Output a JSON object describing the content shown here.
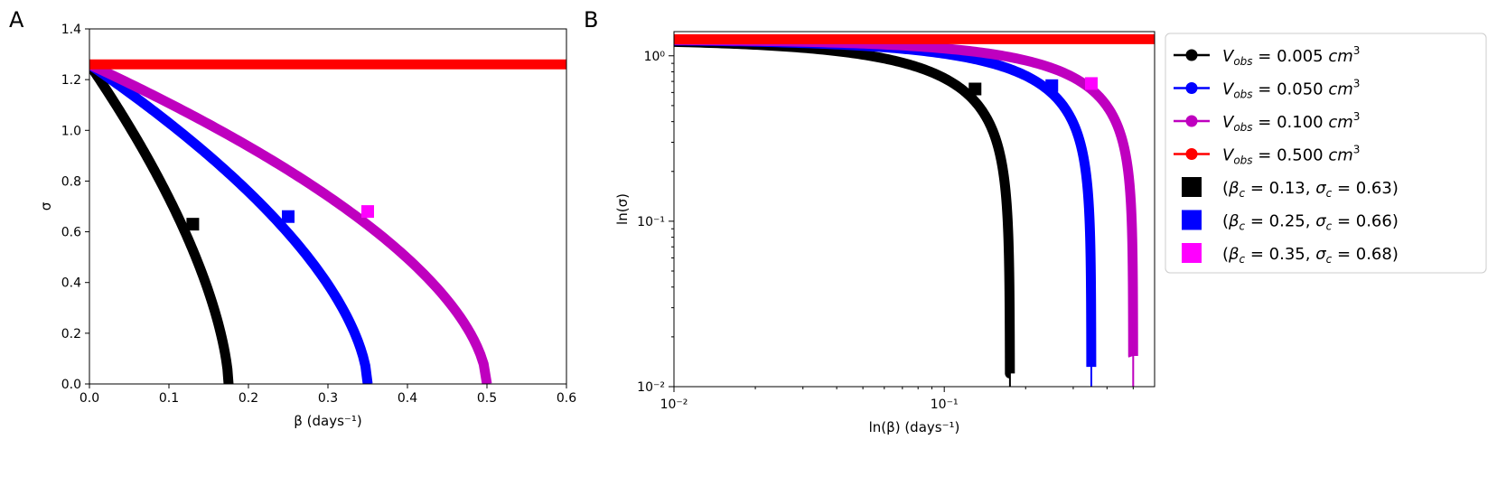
{
  "panels": [
    {
      "label": "A"
    },
    {
      "label": "B"
    }
  ],
  "chart_data": [
    {
      "type": "line",
      "panel": "A",
      "xlabel": "β (days⁻¹)",
      "ylabel": "σ",
      "xlim": [
        0,
        0.6
      ],
      "ylim": [
        0,
        1.4
      ],
      "xticks": [
        "0.0",
        "0.1",
        "0.2",
        "0.3",
        "0.4",
        "0.5",
        "0.6"
      ],
      "yticks": [
        "0.0",
        "0.2",
        "0.4",
        "0.6",
        "0.8",
        "1.0",
        "1.2",
        "1.4"
      ],
      "grid": false,
      "series": [
        {
          "name": "V_obs = 0.005 cm³",
          "color": "#000000",
          "beta_max": 0.175,
          "sigma0": 1.26,
          "exponent": 0.64
        },
        {
          "name": "V_obs = 0.050 cm³",
          "color": "#0000ff",
          "beta_max": 0.35,
          "sigma0": 1.26,
          "exponent": 0.6
        },
        {
          "name": "V_obs = 0.100 cm³",
          "color": "#bf00bf",
          "beta_max": 0.5,
          "sigma0": 1.26,
          "exponent": 0.58
        },
        {
          "name": "V_obs = 0.500 cm³",
          "color": "#ff0000",
          "constant": 1.26
        }
      ],
      "critical_points": [
        {
          "beta": 0.13,
          "sigma": 0.63,
          "color": "#000000"
        },
        {
          "beta": 0.25,
          "sigma": 0.66,
          "color": "#0000ff"
        },
        {
          "beta": 0.35,
          "sigma": 0.68,
          "color": "#ff00ff"
        }
      ]
    },
    {
      "type": "line",
      "panel": "B",
      "scale": "log-log",
      "xlabel": "ln(β) (days⁻¹)",
      "ylabel": "ln(σ)",
      "xlim": [
        0.01,
        0.6
      ],
      "ylim": [
        0.01,
        1.4
      ],
      "xticks": [
        "10⁻²",
        "10⁻¹"
      ],
      "yticks": [
        "10⁻²",
        "10⁻¹",
        "10⁰"
      ],
      "grid": false,
      "legend_position": "outside-right",
      "legend": [
        {
          "prefix": "V",
          "sub": "obs",
          "text": " = 0.005 ",
          "unit": "cm",
          "sup": "3",
          "color": "#000000",
          "marker": "circle"
        },
        {
          "prefix": "V",
          "sub": "obs",
          "text": " = 0.050 ",
          "unit": "cm",
          "sup": "3",
          "color": "#0000ff",
          "marker": "circle"
        },
        {
          "prefix": "V",
          "sub": "obs",
          "text": " = 0.100 ",
          "unit": "cm",
          "sup": "3",
          "color": "#bf00bf",
          "marker": "circle"
        },
        {
          "prefix": "V",
          "sub": "obs",
          "text": " = 0.500 ",
          "unit": "cm",
          "sup": "3",
          "color": "#ff0000",
          "marker": "circle"
        },
        {
          "text": "(β_c = 0.13, σ_c = 0.63)",
          "b": "0.13",
          "s": "0.63",
          "color": "#000000",
          "marker": "square"
        },
        {
          "text": "(β_c = 0.25, σ_c = 0.66)",
          "b": "0.25",
          "s": "0.66",
          "color": "#0000ff",
          "marker": "square"
        },
        {
          "text": "(β_c = 0.35, σ_c = 0.68)",
          "b": "0.35",
          "s": "0.68",
          "color": "#ff00ff",
          "marker": "square"
        }
      ]
    }
  ]
}
